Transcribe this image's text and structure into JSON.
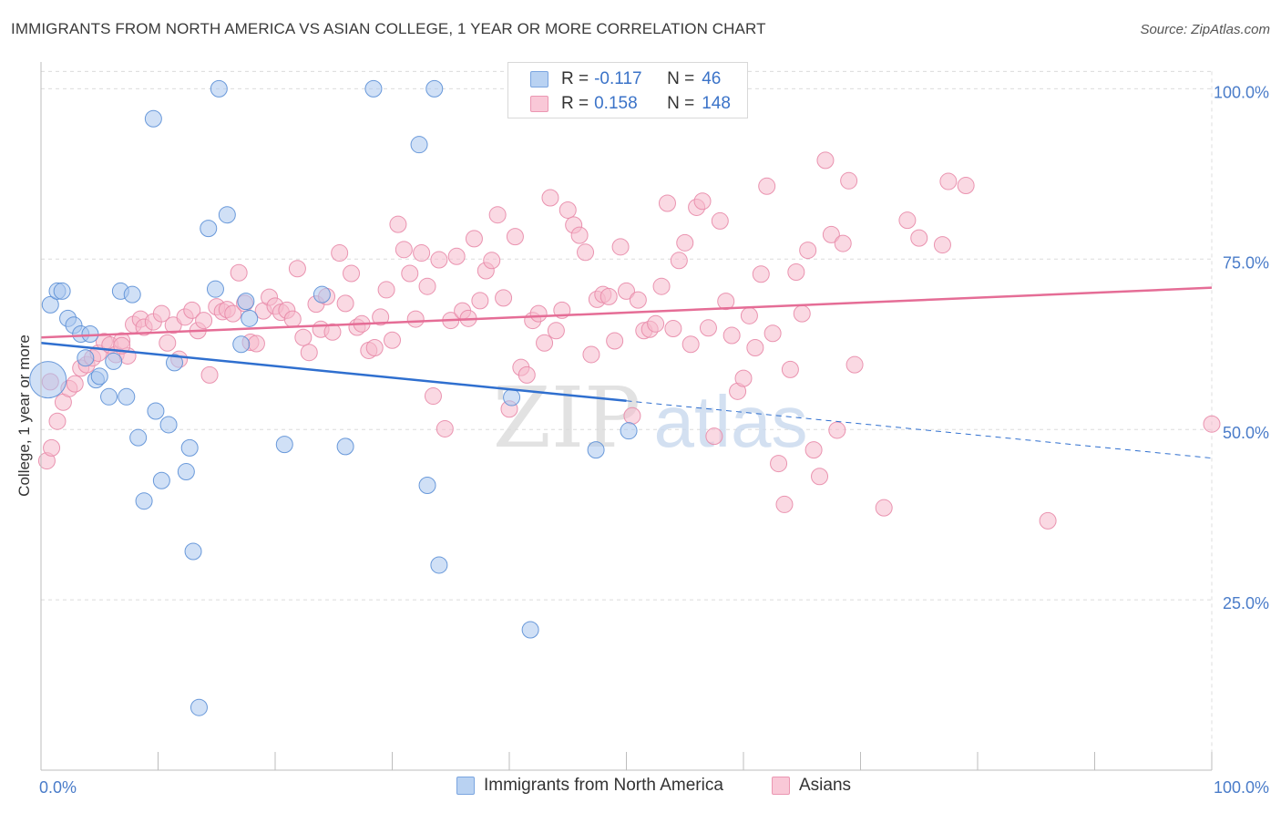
{
  "title": "IMMIGRANTS FROM NORTH AMERICA VS ASIAN COLLEGE, 1 YEAR OR MORE CORRELATION CHART",
  "source": "Source: ZipAtlas.com",
  "watermark": {
    "zip": "ZIP",
    "atlas": "atlas"
  },
  "colors": {
    "blue_fill": "#a9c6ee",
    "blue_stroke": "#5b8fd6",
    "blue_line": "#2f6fcf",
    "pink_fill": "#f6b9cc",
    "pink_stroke": "#e889a8",
    "pink_line": "#e56d96",
    "value_text": "#3b73c8"
  },
  "stats": {
    "blue": {
      "r_label": "R =",
      "r_value": "-0.117",
      "n_label": "N =",
      "n_value": "46"
    },
    "pink": {
      "r_label": "R =",
      "r_value": "0.158",
      "n_label": "N =",
      "n_value": "148"
    }
  },
  "legend": {
    "blue": "Immigrants from North America",
    "pink": "Asians"
  },
  "chart_data": {
    "type": "scatter",
    "title": "IMMIGRANTS FROM NORTH AMERICA VS ASIAN COLLEGE, 1 YEAR OR MORE CORRELATION CHART",
    "xlabel": "",
    "ylabel": "College, 1 year or more",
    "xlim": [
      0,
      100
    ],
    "ylim": [
      0,
      105
    ],
    "x_tick_labels": [
      "0.0%",
      "100.0%"
    ],
    "y_ticks": [
      25,
      50,
      75,
      100
    ],
    "y_tick_labels": [
      "25.0%",
      "50.0%",
      "75.0%",
      "100.0%"
    ],
    "grid": true,
    "legend_position": "bottom",
    "series": [
      {
        "name": "Immigrants from North America",
        "color": "#a9c6ee",
        "r": -0.117,
        "n": 46,
        "trend": {
          "x": [
            0,
            50
          ],
          "y": [
            62.7,
            54.2
          ]
        },
        "trend_dashed": {
          "x": [
            50,
            100
          ],
          "y": [
            54.2,
            45.8
          ]
        },
        "points": [
          [
            0.6,
            57.3
          ],
          [
            0.8,
            68.3
          ],
          [
            1.4,
            70.3
          ],
          [
            1.8,
            70.3
          ],
          [
            2.3,
            66.3
          ],
          [
            2.8,
            65.3
          ],
          [
            3.4,
            64.0
          ],
          [
            3.8,
            60.5
          ],
          [
            4.2,
            64.0
          ],
          [
            4.7,
            57.3
          ],
          [
            5.0,
            57.8
          ],
          [
            5.8,
            54.8
          ],
          [
            6.2,
            60.0
          ],
          [
            6.8,
            70.3
          ],
          [
            7.3,
            54.8
          ],
          [
            7.8,
            69.8
          ],
          [
            8.3,
            48.8
          ],
          [
            8.8,
            39.5
          ],
          [
            9.6,
            95.6
          ],
          [
            9.8,
            52.7
          ],
          [
            10.3,
            42.5
          ],
          [
            10.9,
            50.7
          ],
          [
            11.4,
            59.8
          ],
          [
            12.4,
            43.8
          ],
          [
            12.7,
            47.3
          ],
          [
            13.0,
            32.1
          ],
          [
            13.5,
            9.2
          ],
          [
            14.3,
            79.5
          ],
          [
            14.9,
            70.6
          ],
          [
            15.2,
            100.0
          ],
          [
            15.9,
            81.5
          ],
          [
            17.1,
            62.5
          ],
          [
            17.5,
            68.8
          ],
          [
            17.8,
            66.3
          ],
          [
            20.8,
            47.8
          ],
          [
            24.0,
            69.8
          ],
          [
            26.0,
            47.5
          ],
          [
            28.4,
            100.0
          ],
          [
            32.3,
            91.8
          ],
          [
            33.0,
            41.8
          ],
          [
            33.6,
            100.0
          ],
          [
            34.0,
            30.1
          ],
          [
            40.2,
            54.7
          ],
          [
            41.8,
            20.6
          ],
          [
            47.4,
            47.0
          ],
          [
            50.2,
            49.8
          ]
        ]
      },
      {
        "name": "Asians",
        "color": "#f6b9cc",
        "r": 0.158,
        "n": 148,
        "trend": {
          "x": [
            0,
            100
          ],
          "y": [
            63.5,
            70.8
          ]
        },
        "points": [
          [
            0.5,
            45.4
          ],
          [
            0.9,
            47.3
          ],
          [
            1.4,
            51.2
          ],
          [
            1.9,
            54.0
          ],
          [
            2.4,
            56.0
          ],
          [
            2.9,
            56.7
          ],
          [
            3.4,
            59.0
          ],
          [
            3.9,
            59.5
          ],
          [
            4.4,
            60.5
          ],
          [
            4.9,
            61.2
          ],
          [
            5.4,
            62.9
          ],
          [
            5.9,
            62.4
          ],
          [
            6.4,
            61.0
          ],
          [
            6.9,
            63.0
          ],
          [
            7.4,
            60.8
          ],
          [
            7.9,
            65.4
          ],
          [
            8.5,
            66.2
          ],
          [
            8.8,
            65.0
          ],
          [
            9.6,
            65.8
          ],
          [
            10.3,
            67.0
          ],
          [
            10.8,
            62.7
          ],
          [
            11.3,
            65.3
          ],
          [
            11.8,
            60.3
          ],
          [
            12.3,
            66.5
          ],
          [
            12.9,
            67.5
          ],
          [
            13.4,
            64.5
          ],
          [
            13.9,
            66.0
          ],
          [
            14.4,
            58.0
          ],
          [
            15.0,
            68.0
          ],
          [
            15.5,
            67.3
          ],
          [
            15.9,
            67.6
          ],
          [
            16.4,
            67.0
          ],
          [
            16.9,
            73.0
          ],
          [
            17.4,
            68.5
          ],
          [
            17.9,
            62.8
          ],
          [
            18.4,
            62.6
          ],
          [
            19.0,
            67.4
          ],
          [
            19.5,
            69.4
          ],
          [
            20.0,
            68.1
          ],
          [
            20.5,
            67.2
          ],
          [
            21.0,
            67.5
          ],
          [
            21.5,
            66.2
          ],
          [
            21.9,
            73.6
          ],
          [
            22.4,
            63.5
          ],
          [
            22.9,
            61.3
          ],
          [
            23.5,
            68.4
          ],
          [
            23.9,
            64.7
          ],
          [
            24.4,
            69.5
          ],
          [
            24.9,
            64.3
          ],
          [
            25.5,
            75.9
          ],
          [
            26.0,
            68.5
          ],
          [
            26.5,
            72.9
          ],
          [
            27.0,
            65.0
          ],
          [
            27.4,
            65.5
          ],
          [
            28.0,
            61.6
          ],
          [
            28.5,
            62.0
          ],
          [
            29.0,
            66.5
          ],
          [
            29.5,
            70.5
          ],
          [
            30.0,
            63.1
          ],
          [
            30.5,
            80.1
          ],
          [
            31.0,
            76.4
          ],
          [
            31.5,
            72.9
          ],
          [
            32.0,
            66.2
          ],
          [
            32.5,
            75.9
          ],
          [
            33.0,
            71.0
          ],
          [
            33.5,
            54.9
          ],
          [
            34.0,
            74.9
          ],
          [
            34.5,
            50.1
          ],
          [
            35.0,
            66.0
          ],
          [
            35.5,
            75.4
          ],
          [
            36.0,
            67.4
          ],
          [
            36.5,
            66.3
          ],
          [
            37.0,
            78.0
          ],
          [
            37.5,
            68.9
          ],
          [
            38.0,
            73.3
          ],
          [
            38.5,
            74.8
          ],
          [
            39.0,
            81.5
          ],
          [
            39.5,
            69.3
          ],
          [
            40.0,
            53.0
          ],
          [
            40.5,
            78.3
          ],
          [
            41.0,
            59.1
          ],
          [
            41.5,
            58.0
          ],
          [
            42.0,
            66.0
          ],
          [
            42.5,
            67.0
          ],
          [
            43.0,
            62.7
          ],
          [
            43.5,
            84.0
          ],
          [
            44.0,
            64.5
          ],
          [
            44.5,
            67.5
          ],
          [
            45.0,
            82.2
          ],
          [
            45.5,
            80.0
          ],
          [
            46.0,
            78.5
          ],
          [
            46.5,
            76.0
          ],
          [
            47.0,
            61.0
          ],
          [
            47.5,
            69.1
          ],
          [
            48.0,
            69.8
          ],
          [
            48.5,
            69.5
          ],
          [
            49.0,
            63.0
          ],
          [
            49.5,
            76.8
          ],
          [
            50.0,
            70.3
          ],
          [
            50.5,
            52.0
          ],
          [
            51.0,
            69.0
          ],
          [
            51.5,
            64.5
          ],
          [
            52.0,
            64.7
          ],
          [
            52.5,
            65.5
          ],
          [
            53.0,
            71.0
          ],
          [
            53.5,
            83.2
          ],
          [
            54.0,
            64.8
          ],
          [
            54.5,
            74.8
          ],
          [
            55.0,
            77.4
          ],
          [
            55.5,
            62.5
          ],
          [
            56.0,
            82.6
          ],
          [
            56.5,
            83.5
          ],
          [
            57.0,
            64.9
          ],
          [
            57.5,
            49.0
          ],
          [
            58.0,
            80.6
          ],
          [
            58.5,
            68.8
          ],
          [
            59.0,
            63.8
          ],
          [
            59.5,
            55.6
          ],
          [
            60.0,
            57.5
          ],
          [
            60.5,
            66.7
          ],
          [
            61.0,
            62.0
          ],
          [
            61.5,
            72.8
          ],
          [
            62.0,
            85.7
          ],
          [
            62.5,
            64.1
          ],
          [
            63.0,
            45.0
          ],
          [
            63.5,
            39.0
          ],
          [
            64.0,
            58.8
          ],
          [
            64.5,
            73.1
          ],
          [
            65.0,
            67.0
          ],
          [
            65.5,
            76.3
          ],
          [
            66.0,
            47.0
          ],
          [
            66.5,
            43.1
          ],
          [
            67.0,
            89.5
          ],
          [
            67.5,
            78.6
          ],
          [
            68.0,
            49.9
          ],
          [
            68.5,
            77.3
          ],
          [
            69.0,
            86.5
          ],
          [
            69.5,
            59.5
          ],
          [
            72.0,
            38.5
          ],
          [
            74.0,
            80.7
          ],
          [
            75.0,
            78.1
          ],
          [
            77.0,
            77.1
          ],
          [
            77.5,
            86.4
          ],
          [
            79.0,
            85.8
          ],
          [
            86.0,
            36.6
          ],
          [
            100.0,
            50.8
          ],
          [
            0.8,
            57.0
          ],
          [
            6.9,
            62.3
          ]
        ]
      }
    ]
  }
}
